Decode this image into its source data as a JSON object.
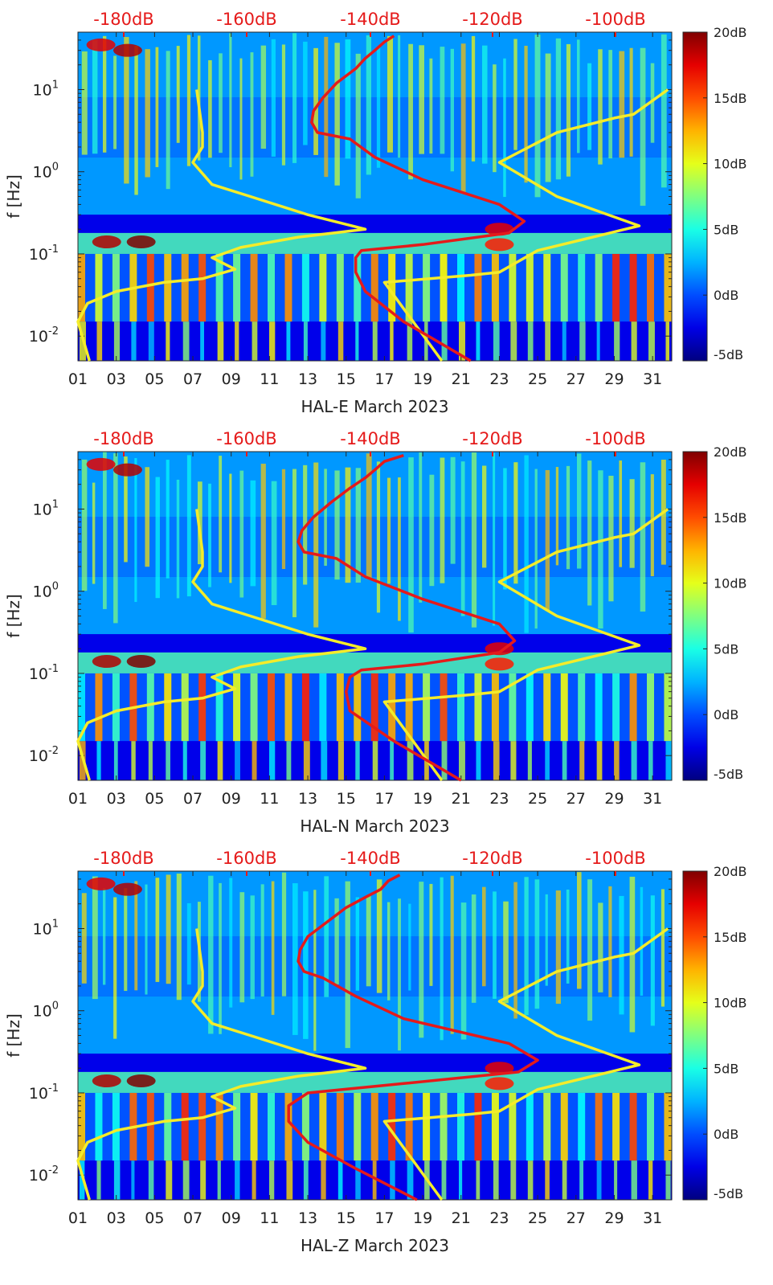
{
  "colors": {
    "psd_model": "#f4ec2a",
    "noise_line": "#e51a1a",
    "top_axis": "#e51a1a"
  },
  "chart_data": [
    {
      "type": "heatmap",
      "title": "",
      "xlabel": "HAL-E March 2023",
      "ylabel": "f [Hz]",
      "x_ticks": [
        "01",
        "03",
        "05",
        "07",
        "09",
        "11",
        "13",
        "15",
        "17",
        "19",
        "21",
        "23",
        "25",
        "27",
        "29",
        "31"
      ],
      "xlim": [
        1,
        32
      ],
      "ylim_hz": [
        0.005,
        50
      ],
      "y_ticks": [
        {
          "base": "10",
          "exp": "1",
          "value": 10
        },
        {
          "base": "10",
          "exp": "0",
          "value": 1
        },
        {
          "base": "10",
          "exp": "-1",
          "value": 0.1
        },
        {
          "base": "10",
          "exp": "-2",
          "value": 0.01
        }
      ],
      "top_axis_labels": [
        "-180dB",
        "-160dB",
        "-140dB",
        "-120dB",
        "-100dB"
      ],
      "colorbar": {
        "labels": [
          "20dB",
          "15dB",
          "10dB",
          "5dB",
          "0dB",
          "-5dB"
        ],
        "range_db": [
          -5,
          20
        ]
      },
      "series": [
        {
          "name": "yellow-model",
          "x": [
            1.6,
            1.0,
            1.5,
            3.0,
            5.5,
            7.5,
            9.2,
            8.0,
            9.5,
            12.5,
            16.0,
            13.0,
            10.0,
            8.0,
            7.0,
            7.5,
            7.5,
            7.2
          ],
          "f": [
            0.005,
            0.015,
            0.025,
            0.035,
            0.045,
            0.05,
            0.065,
            0.09,
            0.12,
            0.16,
            0.2,
            0.3,
            0.5,
            0.7,
            1.3,
            2.0,
            3.0,
            10
          ]
        },
        {
          "name": "yellow-right",
          "x": [
            20.0,
            17.0,
            21.5,
            23.0,
            25.0,
            30.3,
            26.0,
            23.0,
            26.0,
            29.0,
            30.0,
            31.8
          ],
          "f": [
            0.005,
            0.045,
            0.055,
            0.06,
            0.11,
            0.22,
            0.5,
            1.3,
            3.0,
            4.5,
            5.0,
            10
          ]
        },
        {
          "name": "red-noise",
          "x": [
            21.5,
            18.0,
            16.0,
            15.5,
            15.5,
            15.8,
            19.0,
            23.5,
            24.3,
            23.0,
            19.0,
            16.5,
            15.2,
            13.5,
            13.2,
            13.3,
            13.8,
            14.5,
            15.5,
            16.0,
            16.5,
            17.0,
            17.5
          ],
          "f": [
            0.005,
            0.015,
            0.035,
            0.06,
            0.09,
            0.11,
            0.13,
            0.18,
            0.25,
            0.4,
            0.8,
            1.5,
            2.5,
            3.0,
            4.0,
            5.5,
            8.0,
            12.0,
            18.0,
            24.0,
            30.0,
            38.0,
            45.0
          ]
        }
      ]
    },
    {
      "type": "heatmap",
      "title": "",
      "xlabel": "HAL-N March 2023",
      "ylabel": "f [Hz]",
      "x_ticks": [
        "01",
        "03",
        "05",
        "07",
        "09",
        "11",
        "13",
        "15",
        "17",
        "19",
        "21",
        "23",
        "25",
        "27",
        "29",
        "31"
      ],
      "xlim": [
        1,
        32
      ],
      "ylim_hz": [
        0.005,
        50
      ],
      "y_ticks": [
        {
          "base": "10",
          "exp": "1",
          "value": 10
        },
        {
          "base": "10",
          "exp": "0",
          "value": 1
        },
        {
          "base": "10",
          "exp": "-1",
          "value": 0.1
        },
        {
          "base": "10",
          "exp": "-2",
          "value": 0.01
        }
      ],
      "top_axis_labels": [
        "-180dB",
        "-160dB",
        "-140dB",
        "-120dB",
        "-100dB"
      ],
      "colorbar": {
        "labels": [
          "20dB",
          "15dB",
          "10dB",
          "5dB",
          "0dB",
          "-5dB"
        ],
        "range_db": [
          -5,
          20
        ]
      },
      "series": [
        {
          "name": "yellow-model",
          "x": [
            1.6,
            1.0,
            1.5,
            3.0,
            5.5,
            7.5,
            9.2,
            8.0,
            9.5,
            12.5,
            16.0,
            13.0,
            10.0,
            8.0,
            7.0,
            7.5,
            7.5,
            7.2
          ],
          "f": [
            0.005,
            0.015,
            0.025,
            0.035,
            0.045,
            0.05,
            0.065,
            0.09,
            0.12,
            0.16,
            0.2,
            0.3,
            0.5,
            0.7,
            1.3,
            2.0,
            3.0,
            10
          ]
        },
        {
          "name": "yellow-right",
          "x": [
            20.0,
            17.0,
            21.5,
            23.0,
            25.0,
            30.3,
            26.0,
            23.0,
            26.0,
            29.0,
            30.0,
            31.8
          ],
          "f": [
            0.005,
            0.045,
            0.055,
            0.06,
            0.11,
            0.22,
            0.5,
            1.3,
            3.0,
            4.5,
            5.0,
            10
          ]
        },
        {
          "name": "red-noise",
          "x": [
            21.0,
            17.5,
            15.2,
            15.0,
            15.2,
            15.8,
            19.0,
            23.0,
            23.8,
            23.0,
            19.0,
            16.0,
            14.5,
            12.8,
            12.5,
            12.7,
            13.3,
            14.2,
            15.2,
            16.0,
            16.5,
            17.0,
            18.0
          ],
          "f": [
            0.005,
            0.015,
            0.035,
            0.06,
            0.09,
            0.11,
            0.13,
            0.18,
            0.25,
            0.4,
            0.8,
            1.5,
            2.5,
            3.0,
            4.0,
            5.5,
            8.0,
            12.0,
            18.0,
            24.0,
            30.0,
            38.0,
            45.0
          ]
        }
      ]
    },
    {
      "type": "heatmap",
      "title": "",
      "xlabel": "HAL-Z March 2023",
      "ylabel": "f [Hz]",
      "x_ticks": [
        "01",
        "03",
        "05",
        "07",
        "09",
        "11",
        "13",
        "15",
        "17",
        "19",
        "21",
        "23",
        "25",
        "27",
        "29",
        "31"
      ],
      "xlim": [
        1,
        32
      ],
      "ylim_hz": [
        0.005,
        50
      ],
      "y_ticks": [
        {
          "base": "10",
          "exp": "1",
          "value": 10
        },
        {
          "base": "10",
          "exp": "0",
          "value": 1
        },
        {
          "base": "10",
          "exp": "-1",
          "value": 0.1
        },
        {
          "base": "10",
          "exp": "-2",
          "value": 0.01
        }
      ],
      "top_axis_labels": [
        "-180dB",
        "-160dB",
        "-140dB",
        "-120dB",
        "-100dB"
      ],
      "colorbar": {
        "labels": [
          "20dB",
          "15dB",
          "10dB",
          "5dB",
          "0dB",
          "-5dB"
        ],
        "range_db": [
          -5,
          20
        ]
      },
      "series": [
        {
          "name": "yellow-model",
          "x": [
            1.6,
            1.0,
            1.5,
            3.0,
            5.5,
            7.5,
            9.2,
            8.0,
            9.5,
            12.5,
            16.0,
            13.0,
            10.0,
            8.0,
            7.0,
            7.5,
            7.5,
            7.2
          ],
          "f": [
            0.005,
            0.015,
            0.025,
            0.035,
            0.045,
            0.05,
            0.065,
            0.09,
            0.12,
            0.16,
            0.2,
            0.3,
            0.5,
            0.7,
            1.3,
            2.0,
            3.0,
            10
          ]
        },
        {
          "name": "yellow-right",
          "x": [
            20.0,
            17.0,
            21.5,
            23.0,
            25.0,
            30.3,
            26.0,
            23.0,
            26.0,
            29.0,
            30.0,
            31.8
          ],
          "f": [
            0.005,
            0.045,
            0.055,
            0.06,
            0.11,
            0.22,
            0.5,
            1.3,
            3.0,
            4.5,
            5.0,
            10
          ]
        },
        {
          "name": "red-noise",
          "x": [
            18.7,
            15.5,
            13.0,
            12.0,
            12.0,
            13.0,
            18.0,
            24.0,
            25.0,
            23.5,
            18.0,
            15.5,
            13.8,
            12.8,
            12.5,
            12.6,
            13.0,
            14.0,
            15.0,
            16.0,
            16.8,
            17.2,
            17.8
          ],
          "f": [
            0.005,
            0.012,
            0.025,
            0.045,
            0.07,
            0.1,
            0.13,
            0.18,
            0.25,
            0.4,
            0.8,
            1.5,
            2.5,
            3.0,
            4.0,
            5.5,
            8.0,
            12.0,
            18.0,
            24.0,
            30.0,
            38.0,
            45.0
          ]
        }
      ]
    }
  ]
}
